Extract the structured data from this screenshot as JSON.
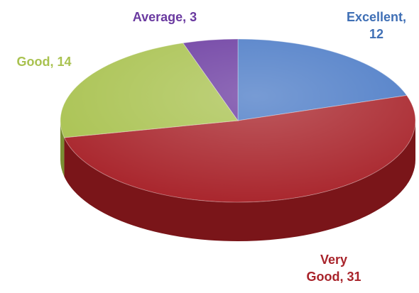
{
  "chart_data": {
    "type": "pie",
    "title": "",
    "categories": [
      "Excellent",
      "Very Good",
      "Good",
      "Average"
    ],
    "values": [
      12,
      31,
      14,
      3
    ],
    "labels": [
      {
        "lines": [
          "Excellent,",
          "12"
        ]
      },
      {
        "lines": [
          "Very",
          "Good, 31"
        ]
      },
      {
        "lines": [
          "Good, 14"
        ]
      },
      {
        "lines": [
          "Average, 3"
        ]
      }
    ],
    "colors": {
      "Excellent": "#4a7ac6",
      "Very Good": "#a8232a",
      "Good": "#a9c250",
      "Average": "#6a3aa0"
    },
    "side_colors": {
      "Excellent": "#2f5593",
      "Very Good": "#7a1519",
      "Good": "#7a8e33",
      "Average": "#46246e"
    },
    "label_colors": {
      "Excellent": "#3f6fb5",
      "Very Good": "#a8232a",
      "Good": "#a9c250",
      "Average": "#6a3aa0"
    },
    "style": "3d-pie",
    "legend": "none"
  }
}
